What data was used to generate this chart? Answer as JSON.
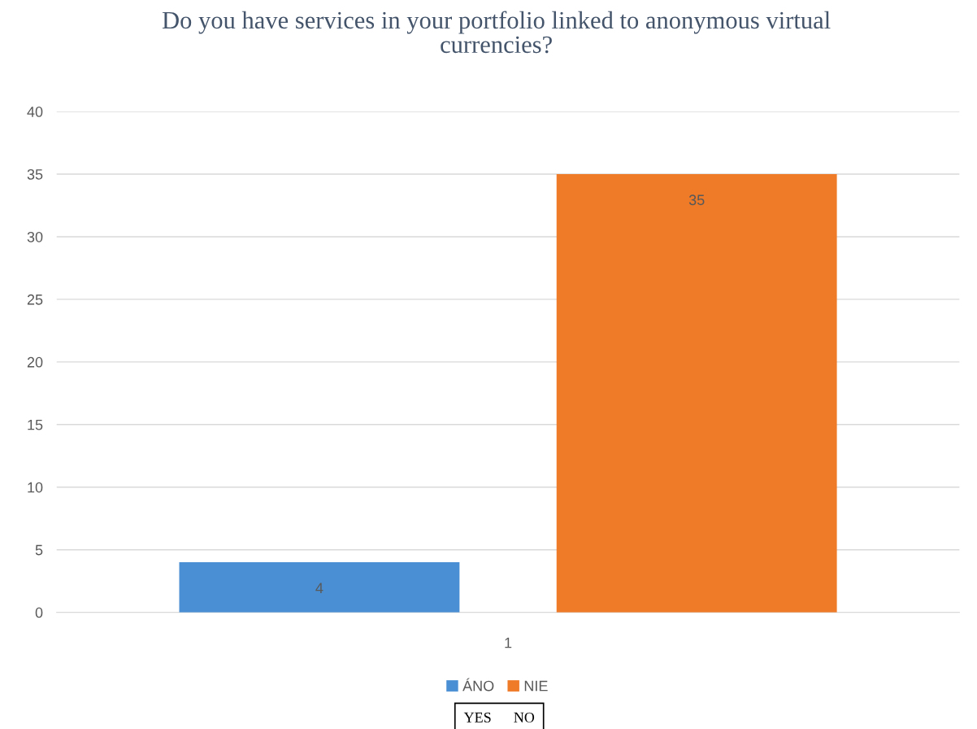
{
  "chart_data": {
    "type": "bar",
    "title": "Do you have services in your portfolio linked to anonymous virtual\ncurrencies?",
    "categories": [
      "1"
    ],
    "series": [
      {
        "name": "ÁNO",
        "color": "#4a8fd3",
        "values": [
          4
        ]
      },
      {
        "name": "NIE",
        "color": "#ef7a27",
        "values": [
          35
        ]
      }
    ],
    "ylim": [
      0,
      40
    ],
    "yticks": [
      0,
      5,
      10,
      15,
      20,
      25,
      30,
      35,
      40
    ],
    "grid": "y",
    "legend": "bottom",
    "data_labels": true,
    "annotations": [
      "YES      NO"
    ]
  }
}
